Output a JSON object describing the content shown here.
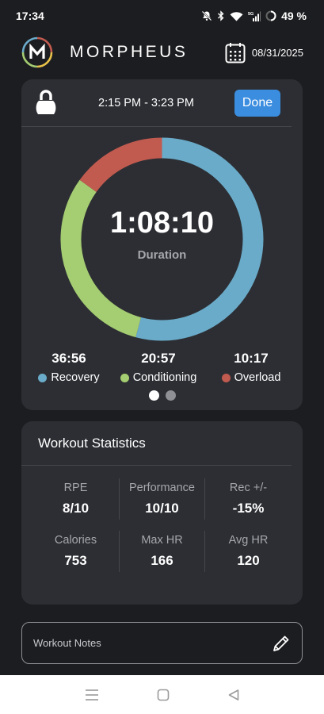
{
  "status_bar": {
    "time": "17:34",
    "battery": "49 %"
  },
  "header": {
    "title": "MORPHEUS",
    "date": "08/31/2025"
  },
  "session": {
    "time_range": "2:15 PM - 3:23 PM",
    "done_label": "Done",
    "duration": "1:08:10",
    "duration_label": "Duration"
  },
  "zones": [
    {
      "value": "36:56",
      "label": "Recovery",
      "color": "#6aabc9",
      "minutes": 36.93
    },
    {
      "value": "20:57",
      "label": "Conditioning",
      "color": "#a5cd72",
      "minutes": 20.95
    },
    {
      "value": "10:17",
      "label": "Overload",
      "color": "#c15a4f",
      "minutes": 10.28
    }
  ],
  "pager": {
    "pages": 2,
    "active": 0
  },
  "stats": {
    "title": "Workout Statistics",
    "items": [
      {
        "label": "RPE",
        "value": "8/10"
      },
      {
        "label": "Performance",
        "value": "10/10"
      },
      {
        "label": "Rec +/-",
        "value": "-15%"
      },
      {
        "label": "Calories",
        "value": "753"
      },
      {
        "label": "Max HR",
        "value": "166"
      },
      {
        "label": "Avg HR",
        "value": "120"
      }
    ]
  },
  "notes": {
    "placeholder": "Workout Notes"
  }
}
